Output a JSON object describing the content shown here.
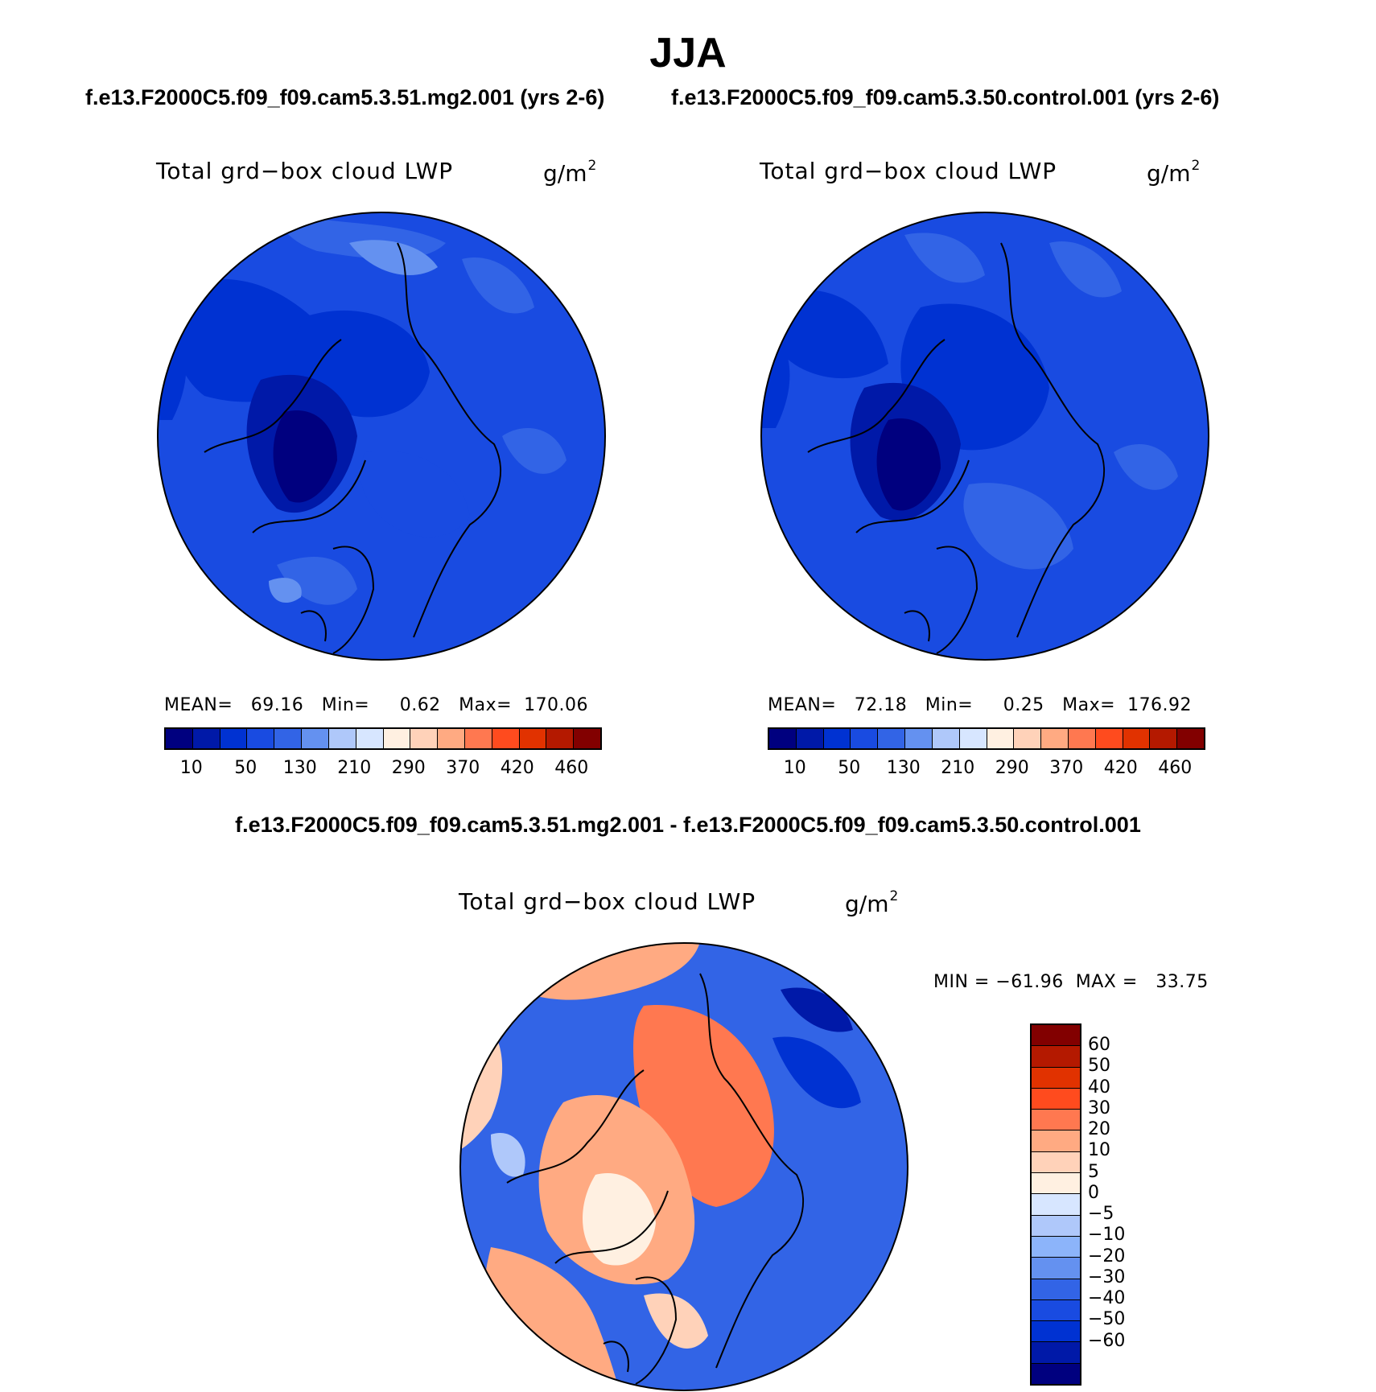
{
  "header": {
    "season": "JJA",
    "case1_title": "f.e13.F2000C5.f09_f09.cam5.3.51.mg2.001 (yrs 2-6)",
    "case2_title": "f.e13.F2000C5.f09_f09.cam5.3.50.control.001 (yrs 2-6)",
    "diff_title": "f.e13.F2000C5.f09_f09.cam5.3.51.mg2.001 - f.e13.F2000C5.f09_f09.cam5.3.50.control.001"
  },
  "panels": {
    "left": {
      "title": "Total grd−box cloud LWP",
      "units": "g/m",
      "units_exp": "2",
      "stats": "MEAN=   69.16   Min=     0.62   Max=  170.06"
    },
    "right": {
      "title": "Total grd−box cloud LWP",
      "units": "g/m",
      "units_exp": "2",
      "stats": "MEAN=   72.18   Min=     0.25   Max=  176.92"
    },
    "diff": {
      "title": "Total grd−box cloud LWP",
      "units": "g/m",
      "units_exp": "2",
      "stats": "MIN = −61.96  MAX =   33.75"
    }
  },
  "colorbars": {
    "abs_colors": [
      "#00007f",
      "#0019a8",
      "#0032d2",
      "#194be1",
      "#3264e6",
      "#6491f0",
      "#afc8fa",
      "#d7e6ff",
      "#fff0e1",
      "#ffd2b9",
      "#ffaa82",
      "#ff7850",
      "#ff4b1e",
      "#e13200",
      "#b41900",
      "#820000"
    ],
    "abs_labels": [
      "10",
      "50",
      "130",
      "210",
      "290",
      "370",
      "420",
      "460"
    ],
    "diff_colors": [
      "#820000",
      "#b41900",
      "#e13200",
      "#ff4b1e",
      "#ff7850",
      "#ffaa82",
      "#ffd2b9",
      "#fff0e1",
      "#d7e6ff",
      "#afc8fa",
      "#8cb4fa",
      "#6491f0",
      "#3264e6",
      "#194be1",
      "#0032d2",
      "#0019a8",
      "#00007f"
    ],
    "diff_labels": [
      "60",
      "50",
      "40",
      "30",
      "20",
      "10",
      "5",
      "0",
      "−5",
      "−10",
      "−20",
      "−30",
      "−40",
      "−50",
      "−60"
    ]
  },
  "chart_data": [
    {
      "type": "heatmap",
      "projection": "north polar stereographic",
      "title": "Total grd−box cloud LWP",
      "units": "g/m2",
      "case": "f.e13.F2000C5.f09_f09.cam5.3.51.mg2.001 (yrs 2-6)",
      "mean": 69.16,
      "min": 0.62,
      "max": 170.06,
      "levels": [
        10,
        50,
        130,
        210,
        290,
        370,
        420,
        460
      ]
    },
    {
      "type": "heatmap",
      "projection": "north polar stereographic",
      "title": "Total grd−box cloud LWP",
      "units": "g/m2",
      "case": "f.e13.F2000C5.f09_f09.cam5.3.50.control.001 (yrs 2-6)",
      "mean": 72.18,
      "min": 0.25,
      "max": 176.92,
      "levels": [
        10,
        50,
        130,
        210,
        290,
        370,
        420,
        460
      ]
    },
    {
      "type": "heatmap",
      "projection": "north polar stereographic",
      "title": "Total grd−box cloud LWP",
      "units": "g/m2",
      "case": "f.e13.F2000C5.f09_f09.cam5.3.51.mg2.001 - f.e13.F2000C5.f09_f09.cam5.3.50.control.001",
      "min": -61.96,
      "max": 33.75,
      "levels": [
        -60,
        -50,
        -40,
        -30,
        -20,
        -10,
        -5,
        0,
        5,
        10,
        20,
        30,
        40,
        50,
        60
      ]
    }
  ]
}
